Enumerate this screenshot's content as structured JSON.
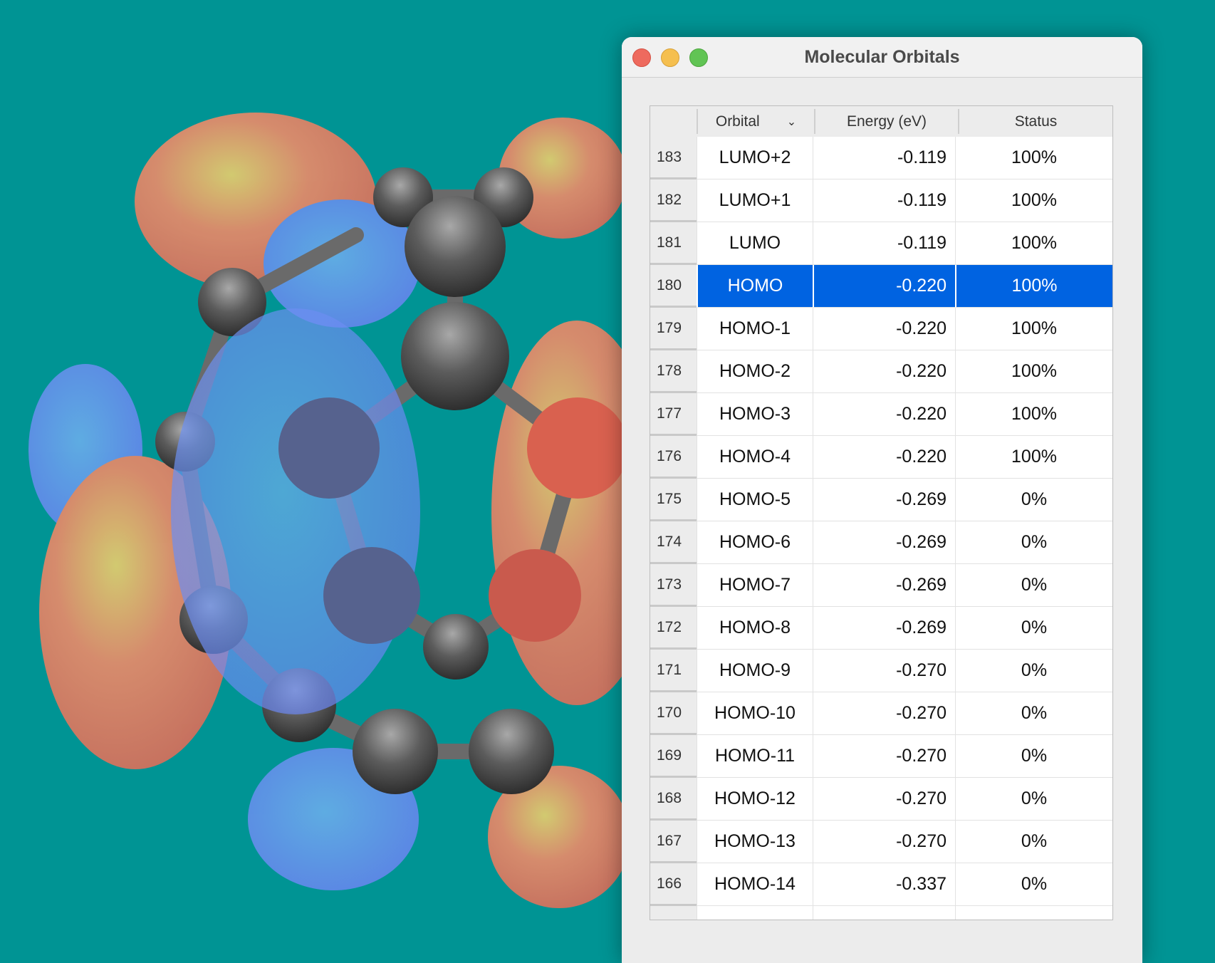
{
  "window": {
    "title": "Molecular Orbitals"
  },
  "table": {
    "columns": [
      "Orbital",
      "Energy (eV)",
      "Status"
    ],
    "sort_icon": "chevron-down-icon",
    "selected_index": 180,
    "rows": [
      {
        "index": "183",
        "orbital": "LUMO+2",
        "energy": "-0.119",
        "status": "100%"
      },
      {
        "index": "182",
        "orbital": "LUMO+1",
        "energy": "-0.119",
        "status": "100%"
      },
      {
        "index": "181",
        "orbital": "LUMO",
        "energy": "-0.119",
        "status": "100%"
      },
      {
        "index": "180",
        "orbital": "HOMO",
        "energy": "-0.220",
        "status": "100%"
      },
      {
        "index": "179",
        "orbital": "HOMO-1",
        "energy": "-0.220",
        "status": "100%"
      },
      {
        "index": "178",
        "orbital": "HOMO-2",
        "energy": "-0.220",
        "status": "100%"
      },
      {
        "index": "177",
        "orbital": "HOMO-3",
        "energy": "-0.220",
        "status": "100%"
      },
      {
        "index": "176",
        "orbital": "HOMO-4",
        "energy": "-0.220",
        "status": "100%"
      },
      {
        "index": "175",
        "orbital": "HOMO-5",
        "energy": "-0.269",
        "status": "0%"
      },
      {
        "index": "174",
        "orbital": "HOMO-6",
        "energy": "-0.269",
        "status": "0%"
      },
      {
        "index": "173",
        "orbital": "HOMO-7",
        "energy": "-0.269",
        "status": "0%"
      },
      {
        "index": "172",
        "orbital": "HOMO-8",
        "energy": "-0.269",
        "status": "0%"
      },
      {
        "index": "171",
        "orbital": "HOMO-9",
        "energy": "-0.270",
        "status": "0%"
      },
      {
        "index": "170",
        "orbital": "HOMO-10",
        "energy": "-0.270",
        "status": "0%"
      },
      {
        "index": "169",
        "orbital": "HOMO-11",
        "energy": "-0.270",
        "status": "0%"
      },
      {
        "index": "168",
        "orbital": "HOMO-12",
        "energy": "-0.270",
        "status": "0%"
      },
      {
        "index": "167",
        "orbital": "HOMO-13",
        "energy": "-0.270",
        "status": "0%"
      },
      {
        "index": "166",
        "orbital": "HOMO-14",
        "energy": "-0.337",
        "status": "0%"
      },
      {
        "index": "",
        "orbital": "",
        "energy": "",
        "status": ""
      }
    ]
  },
  "colors": {
    "background": "#009494",
    "selection": "#0063e1",
    "positive_lobe": "#ff7f5f",
    "negative_lobe": "#6a8cff",
    "atom": "#5a5a5a"
  }
}
